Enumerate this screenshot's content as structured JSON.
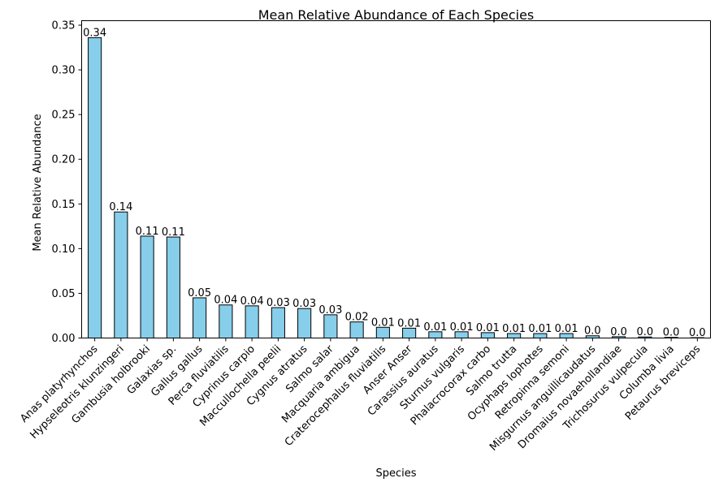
{
  "chart_data": {
    "type": "bar",
    "title": "Mean Relative Abundance of Each Species",
    "xlabel": "Species",
    "ylabel": "Mean Relative Abundance",
    "ylim": [
      0,
      0.355
    ],
    "yticks": [
      0.0,
      0.05,
      0.1,
      0.15,
      0.2,
      0.25,
      0.3,
      0.35
    ],
    "ytick_labels": [
      "0.00",
      "0.05",
      "0.10",
      "0.15",
      "0.20",
      "0.25",
      "0.30",
      "0.35"
    ],
    "grid": false,
    "bar_color": "#87ceeb",
    "edge_color": "#000000",
    "categories": [
      "Anas platyrhynchos",
      "Hypseleotris klunzingeri",
      "Gambusia holbrooki",
      "Galaxias sp.",
      "Gallus gallus",
      "Perca fluviatilis",
      "Cyprinus carpio",
      "Maccullochella peelii",
      "Cygnus atratus",
      "Salmo salar",
      "Macquaria ambigua",
      "Craterocephalus fluviatilis",
      "Anser Anser",
      "Carassius auratus",
      "Sturnus vulgaris",
      "Phalacrocorax carbo",
      "Salmo trutta",
      "Ocyphaps lophotes",
      "Retropinna semoni",
      "Misgurnus anguillicaudatus",
      "Dromaius novaehollandiae",
      "Trichosurus vulpecula",
      "Columba livia",
      "Petaurus breviceps"
    ],
    "values": [
      0.336,
      0.141,
      0.114,
      0.113,
      0.045,
      0.037,
      0.036,
      0.034,
      0.033,
      0.026,
      0.018,
      0.012,
      0.011,
      0.007,
      0.007,
      0.006,
      0.005,
      0.005,
      0.005,
      0.0025,
      0.0015,
      0.0012,
      0.0007,
      0.0004
    ],
    "data_labels": [
      "0.34",
      "0.14",
      "0.11",
      "0.11",
      "0.05",
      "0.04",
      "0.04",
      "0.03",
      "0.03",
      "0.03",
      "0.02",
      "0.01",
      "0.01",
      "0.01",
      "0.01",
      "0.01",
      "0.01",
      "0.01",
      "0.01",
      "0.0",
      "0.0",
      "0.0",
      "0.0",
      "0.0"
    ]
  }
}
